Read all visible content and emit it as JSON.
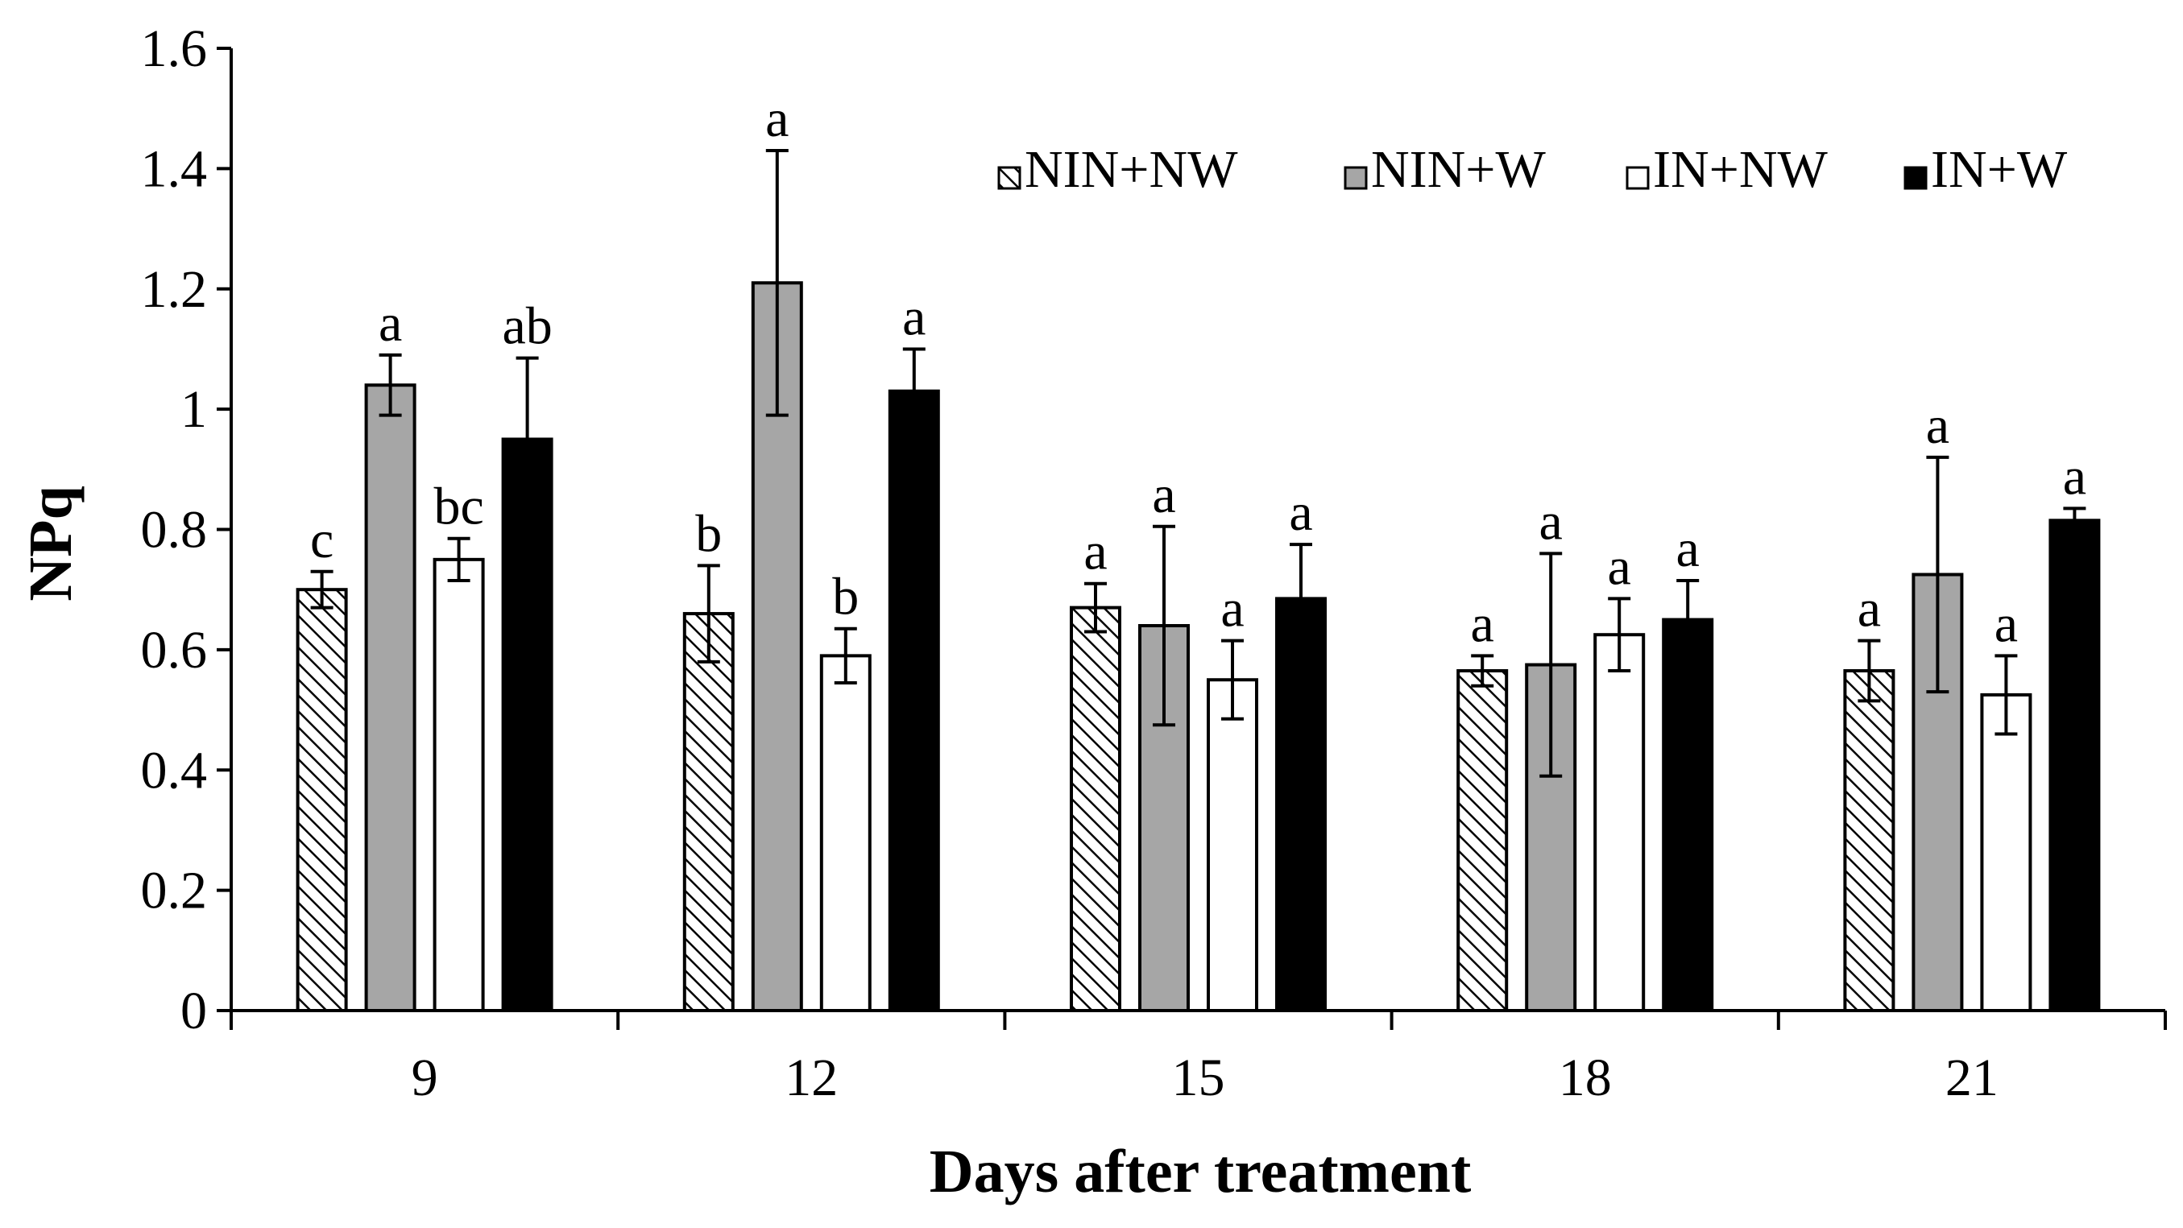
{
  "chart_data": {
    "type": "bar",
    "title": "",
    "xlabel": "Days after treatment",
    "ylabel": "NPq",
    "ylim": [
      0,
      1.6
    ],
    "yticks": [
      "0",
      "0.2",
      "0.4",
      "0.6",
      "0.8",
      "1",
      "1.2",
      "1.4",
      "1.6"
    ],
    "categories": [
      "9",
      "12",
      "15",
      "18",
      "21"
    ],
    "legend_position": "top-right",
    "series": [
      {
        "name": "NIN+NW",
        "fill": "hatch",
        "values": [
          0.7,
          0.66,
          0.67,
          0.565,
          0.565
        ],
        "errors": [
          0.03,
          0.08,
          0.04,
          0.025,
          0.05
        ],
        "letters": [
          "c",
          "b",
          "a",
          "a",
          "a"
        ]
      },
      {
        "name": "NIN+W",
        "fill": "#a6a6a6",
        "values": [
          1.04,
          1.21,
          0.64,
          0.575,
          0.725
        ],
        "errors": [
          0.05,
          0.22,
          0.165,
          0.185,
          0.195
        ],
        "letters": [
          "a",
          "a",
          "a",
          "a",
          "a"
        ]
      },
      {
        "name": "IN+NW",
        "fill": "#ffffff",
        "values": [
          0.75,
          0.59,
          0.55,
          0.625,
          0.525
        ],
        "errors": [
          0.035,
          0.045,
          0.065,
          0.06,
          0.065
        ],
        "letters": [
          "bc",
          "b",
          "a",
          "a",
          "a"
        ]
      },
      {
        "name": "IN+W",
        "fill": "#000000",
        "values": [
          0.95,
          1.03,
          0.685,
          0.65,
          0.815
        ],
        "errors": [
          0.135,
          0.07,
          0.09,
          0.065,
          0.02
        ],
        "letters": [
          "ab",
          "a",
          "a",
          "a",
          "a"
        ]
      }
    ]
  }
}
